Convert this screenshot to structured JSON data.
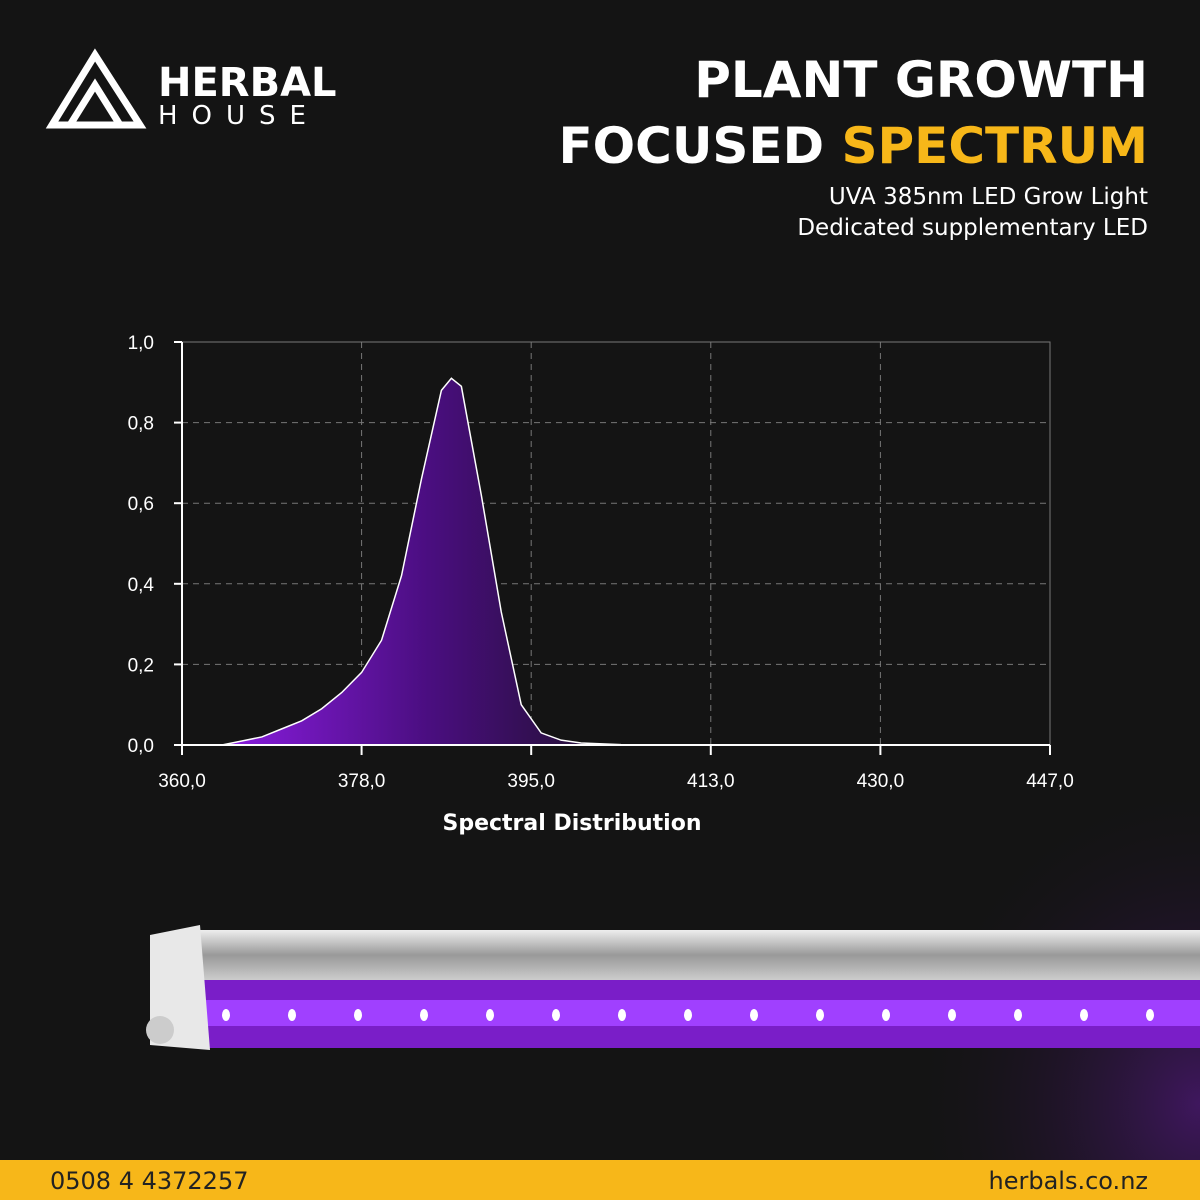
{
  "brand": {
    "name": "HERBAL",
    "sub": "HOUSE"
  },
  "header": {
    "line1": "PLANT GROWTH",
    "line2": "FOCUSED",
    "highlight": "SPECTRUM",
    "sub1": "UVA 385nm LED Grow Light",
    "sub2": "Dedicated supplementary LED"
  },
  "footer": {
    "phone": "0508 4 4372257",
    "website": "herbals.co.nz"
  },
  "chart_data": {
    "type": "area",
    "xlabel": "Spectral Distribution",
    "x": [
      364,
      366,
      368,
      370,
      372,
      374,
      376,
      378,
      380,
      382,
      384,
      386,
      387,
      388,
      390,
      392,
      394,
      396,
      398,
      400,
      404,
      410
    ],
    "values": [
      0.0,
      0.01,
      0.02,
      0.04,
      0.06,
      0.09,
      0.13,
      0.18,
      0.26,
      0.42,
      0.66,
      0.88,
      0.91,
      0.89,
      0.62,
      0.33,
      0.1,
      0.03,
      0.012,
      0.005,
      0.001,
      0.0
    ],
    "color": "#8a1ce0",
    "xlim": [
      360,
      447
    ],
    "xticks": [
      {
        "value": 360,
        "label": "360,0"
      },
      {
        "value": 378,
        "label": "378,0"
      },
      {
        "value": 395,
        "label": "395,0"
      },
      {
        "value": 413,
        "label": "413,0"
      },
      {
        "value": 430,
        "label": "430,0"
      },
      {
        "value": 447,
        "label": "447,0"
      }
    ],
    "ylim": [
      0,
      1
    ],
    "yticks": [
      {
        "value": 0,
        "label": "0,0"
      },
      {
        "value": 0.2,
        "label": "0,2"
      },
      {
        "value": 0.4,
        "label": "0,4"
      },
      {
        "value": 0.6,
        "label": "0,6"
      },
      {
        "value": 0.8,
        "label": "0,8"
      },
      {
        "value": 1,
        "label": "1,0"
      }
    ],
    "grid": true
  }
}
